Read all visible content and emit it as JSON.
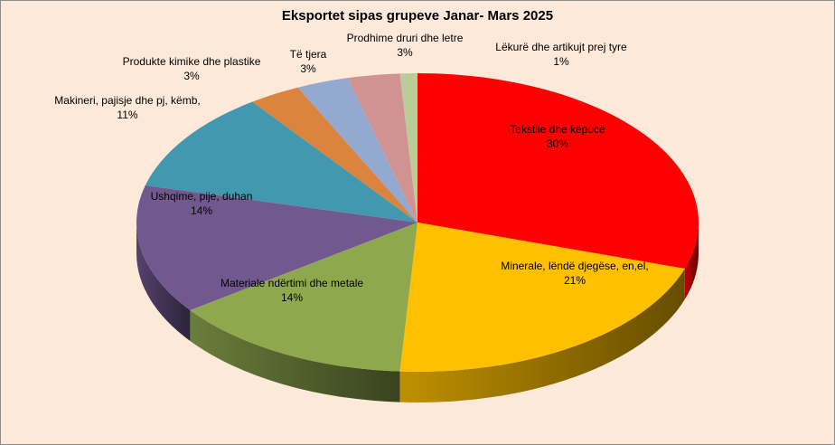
{
  "chart_data": {
    "type": "pie",
    "title": "Eksportet sipas grupeve Janar- Mars 2025",
    "style": "3d",
    "slices": [
      {
        "label": "Tekstile dhe këpucë",
        "value": 30,
        "pct": "30%",
        "color": "#ff0000"
      },
      {
        "label": "Minerale, lëndë djegëse, en,el,",
        "value": 21,
        "pct": "21%",
        "color": "#ffc000"
      },
      {
        "label": "Materiale ndërtimi dhe metale",
        "value": 14,
        "pct": "14%",
        "color": "#8ea84e"
      },
      {
        "label": "Ushqime, pije, duhan",
        "value": 14,
        "pct": "14%",
        "color": "#71588f"
      },
      {
        "label": "Makineri, pajisje dhe pj, këmb,",
        "value": 11,
        "pct": "11%",
        "color": "#4198af"
      },
      {
        "label": "Produkte kimike dhe plastike",
        "value": 3,
        "pct": "3%",
        "color": "#db843d"
      },
      {
        "label": "Të tjera",
        "value": 3,
        "pct": "3%",
        "color": "#93a9cf"
      },
      {
        "label": "Prodhime druri dhe letre",
        "value": 3,
        "pct": "3%",
        "color": "#d19392"
      },
      {
        "label": "Lëkurë dhe artikujt prej tyre",
        "value": 1,
        "pct": "1%",
        "color": "#b9cd96"
      }
    ]
  }
}
